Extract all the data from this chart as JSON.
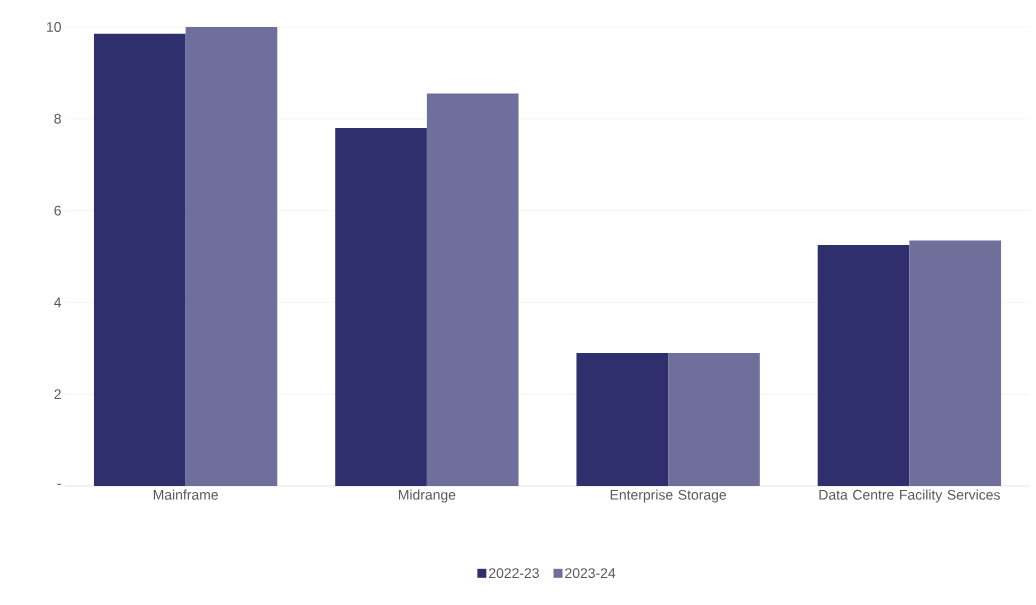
{
  "chart_data": {
    "type": "bar",
    "categories": [
      "Mainframe",
      "Midrange",
      "Enterprise Storage",
      "Data Centre Facility Services"
    ],
    "series": [
      {
        "name": "2022-23",
        "color": "#2f2f6d",
        "values": [
          9.85,
          7.8,
          2.9,
          5.25
        ]
      },
      {
        "name": "2023-24",
        "color": "#6f6f9c",
        "values": [
          10.0,
          8.55,
          2.9,
          5.35
        ]
      }
    ],
    "ylim": [
      0,
      10
    ],
    "yticks": [
      {
        "value": 0,
        "label": "-"
      },
      2,
      4,
      6,
      8,
      10
    ],
    "grid": "y",
    "legend": "bottom"
  }
}
